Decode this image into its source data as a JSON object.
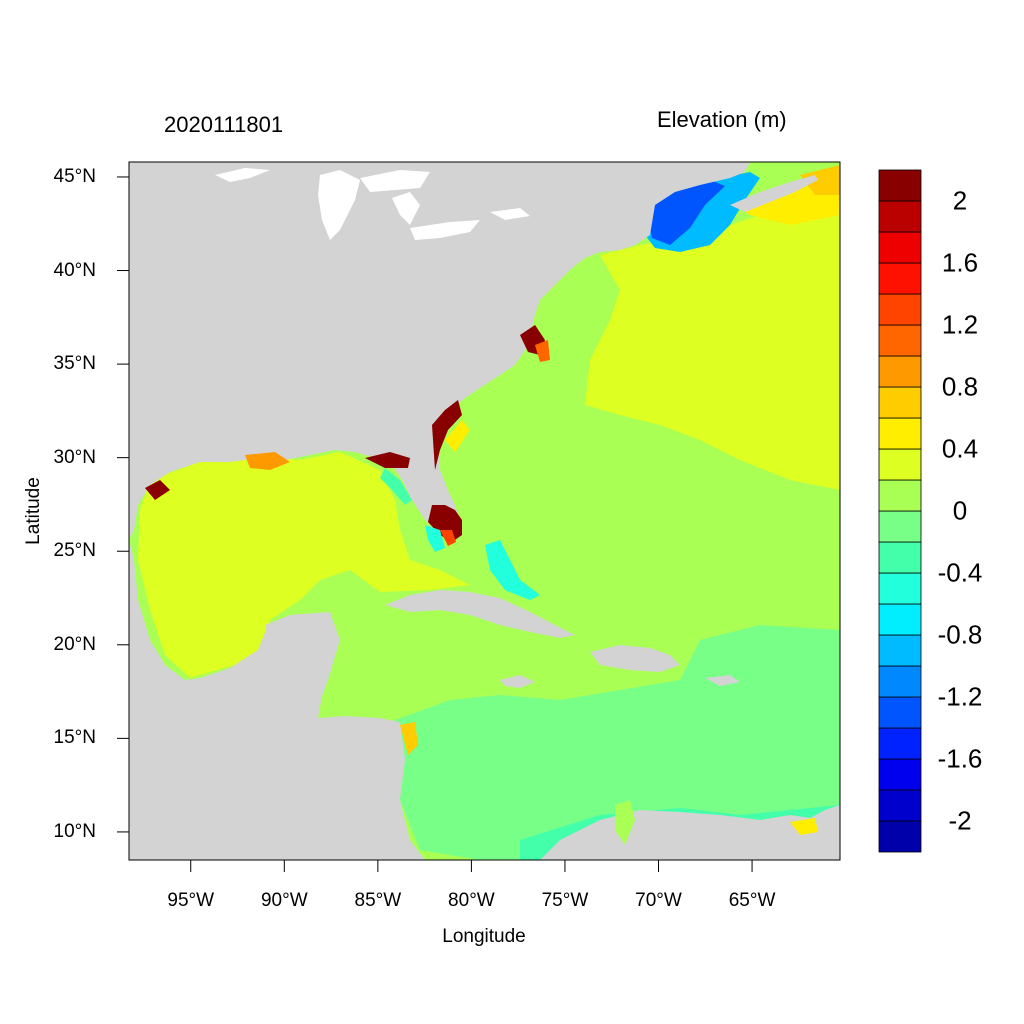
{
  "titles": {
    "left": "2020111801",
    "right": "Elevation (m)"
  },
  "axes": {
    "xlabel": "Longitude",
    "ylabel": "Latitude",
    "lon_range": [
      -98.3,
      -60.3
    ],
    "lat_range": [
      8.5,
      45.8
    ],
    "xticks": [
      {
        "lon": -95,
        "label": "95°W"
      },
      {
        "lon": -90,
        "label": "90°W"
      },
      {
        "lon": -85,
        "label": "85°W"
      },
      {
        "lon": -80,
        "label": "80°W"
      },
      {
        "lon": -75,
        "label": "75°W"
      },
      {
        "lon": -70,
        "label": "70°W"
      },
      {
        "lon": -65,
        "label": "65°W"
      }
    ],
    "yticks": [
      {
        "lat": 45,
        "label": "45°N"
      },
      {
        "lat": 40,
        "label": "40°N"
      },
      {
        "lat": 35,
        "label": "35°N"
      },
      {
        "lat": 30,
        "label": "30°N"
      },
      {
        "lat": 25,
        "label": "25°N"
      },
      {
        "lat": 20,
        "label": "20°N"
      },
      {
        "lat": 15,
        "label": "15°N"
      },
      {
        "lat": 10,
        "label": "10°N"
      }
    ]
  },
  "colorbar": {
    "colors": [
      "#0000aa",
      "#0000cc",
      "#0000ee",
      "#0022ff",
      "#0055ff",
      "#0088ff",
      "#00bbff",
      "#00eeff",
      "#22ffdd",
      "#44ffaa",
      "#77ff88",
      "#aaff55",
      "#ddff22",
      "#ffee00",
      "#ffcc00",
      "#ff9900",
      "#ff6600",
      "#ff4400",
      "#ff1100",
      "#ee0000",
      "#bb0000",
      "#880000"
    ],
    "labels": [
      {
        "level": 2,
        "label": "2"
      },
      {
        "level": 1.6,
        "label": "1.6"
      },
      {
        "level": 1.2,
        "label": "1.2"
      },
      {
        "level": 0.8,
        "label": "0.8"
      },
      {
        "level": 0.4,
        "label": "0.4"
      },
      {
        "level": 0,
        "label": "0"
      },
      {
        "level": -0.4,
        "label": "-0.4"
      },
      {
        "level": -0.8,
        "label": "-0.8"
      },
      {
        "level": -1.2,
        "label": "-1.2"
      },
      {
        "level": -1.6,
        "label": "-1.6"
      },
      {
        "level": -2,
        "label": "-2"
      }
    ]
  },
  "colors": {
    "land": "#d3d3d3",
    "ocean_base": "#aaff55",
    "ocean_high": "#ddff22",
    "caribbean": "#77ff88",
    "gulf_maine": "#0055ff",
    "florida_surge": "#880000"
  }
}
